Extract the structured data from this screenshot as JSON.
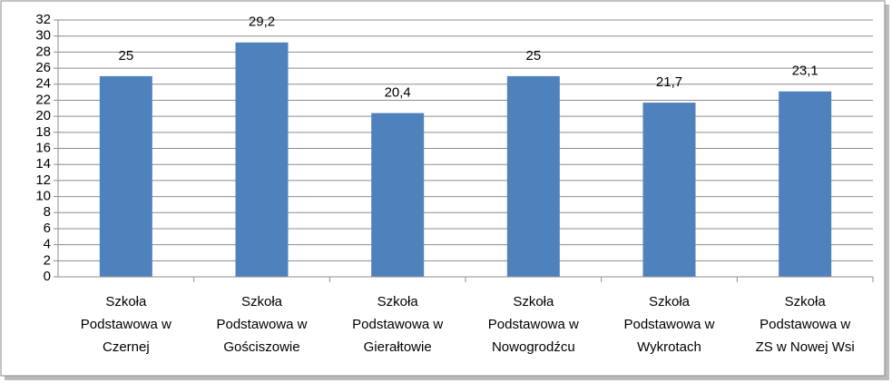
{
  "chart_data": {
    "type": "bar",
    "categories": [
      "Szkoła\nPodstawowa w\nCzernej",
      "Szkoła\nPodstawowa w\nGościszowie",
      "Szkoła\nPodstawowa w\nGierałtowie",
      "Szkoła\nPodstawowa w\nNowogrodźcu",
      "Szkoła\nPodstawowa w\nWykrotach",
      "Szkoła\nPodstawowa w\nZS w Nowej Wsi"
    ],
    "values": [
      25,
      29.2,
      20.4,
      25,
      21.7,
      23.1
    ],
    "value_labels": [
      "25",
      "29,2",
      "20,4",
      "25",
      "21,7",
      "23,1"
    ],
    "color": "#4f81bd",
    "ylim": [
      0,
      32
    ],
    "yticks": [
      0,
      2,
      4,
      6,
      8,
      10,
      12,
      14,
      16,
      18,
      20,
      22,
      24,
      26,
      28,
      30,
      32
    ],
    "grid": true
  }
}
